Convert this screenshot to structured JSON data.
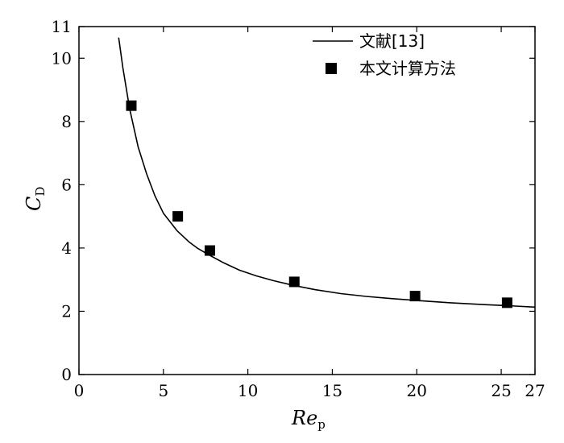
{
  "chart_data": {
    "type": "scatter",
    "xlabel": {
      "main": "Re",
      "sub": "p"
    },
    "ylabel": {
      "main": "C",
      "sub": "D"
    },
    "xlim": [
      0,
      27
    ],
    "ylim": [
      0,
      11
    ],
    "x_ticks": [
      0,
      5,
      10,
      15,
      20,
      25,
      27
    ],
    "y_ticks": [
      0,
      2,
      4,
      6,
      8,
      10,
      11
    ],
    "grid": false,
    "legend_position": "top-right",
    "series": [
      {
        "name": "文献[13]",
        "kind": "line",
        "color": "#000000",
        "x": [
          2.35,
          2.6,
          3.0,
          3.5,
          4.0,
          4.5,
          5.0,
          5.8,
          6.5,
          7.0,
          7.7,
          8.5,
          9.5,
          10.5,
          11.5,
          12.7,
          14.0,
          15.5,
          17.0,
          18.5,
          20.0,
          22.0,
          24.0,
          25.3,
          27.0
        ],
        "y": [
          10.65,
          9.7,
          8.4,
          7.2,
          6.35,
          5.65,
          5.1,
          4.55,
          4.2,
          4.0,
          3.78,
          3.55,
          3.3,
          3.12,
          2.97,
          2.82,
          2.68,
          2.56,
          2.47,
          2.4,
          2.34,
          2.27,
          2.21,
          2.18,
          2.13
        ]
      },
      {
        "name": "本文计算方法",
        "kind": "markers",
        "marker": "square",
        "color": "#000000",
        "x": [
          3.1,
          5.85,
          7.75,
          12.75,
          19.9,
          25.35
        ],
        "y": [
          8.5,
          5.0,
          3.92,
          2.93,
          2.48,
          2.27
        ]
      }
    ]
  }
}
